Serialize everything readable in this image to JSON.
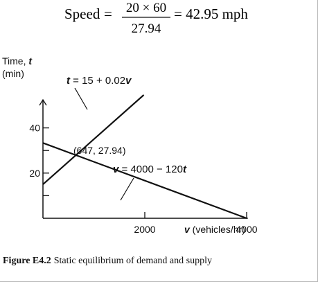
{
  "equation": {
    "lhs": "Speed",
    "equals": "=",
    "numerator": "20 × 60",
    "denominator": "27.94",
    "result": "= 42.95 mph"
  },
  "caption": {
    "label": "Figure E4.2",
    "text": "Static equilibrium of demand and supply"
  },
  "chart_data": {
    "type": "line",
    "xlabel_var": "v",
    "xlabel_unit": " (vehicles/hr)",
    "ylabel_line1": "Time, ",
    "ylabel_var": "t",
    "ylabel_line2": "(min)",
    "xlim": [
      0,
      4500
    ],
    "ylim": [
      0,
      50
    ],
    "x_ticks": [
      {
        "value": 2000,
        "label": "2000"
      },
      {
        "value": 4000,
        "label": "4000"
      }
    ],
    "y_ticks": [
      {
        "value": 10,
        "label": ""
      },
      {
        "value": 20,
        "label": "20"
      },
      {
        "value": 30,
        "label": ""
      },
      {
        "value": 40,
        "label": "40"
      }
    ],
    "series": [
      {
        "label_var": "t",
        "label_rest": " = 15 + 0.02",
        "label_var2": "v",
        "intercept": 15,
        "slope": 0.02,
        "x": [
          0,
          1980
        ],
        "y": [
          15,
          54.6
        ]
      },
      {
        "label_var": "v",
        "label_rest": " = 4000 − 120",
        "label_var2": "t",
        "x": [
          0,
          4000
        ],
        "y": [
          33.33,
          0
        ]
      }
    ],
    "annotation": {
      "text": "(647, 27.94)",
      "x": 647,
      "y": 27.94
    },
    "grid": false
  }
}
